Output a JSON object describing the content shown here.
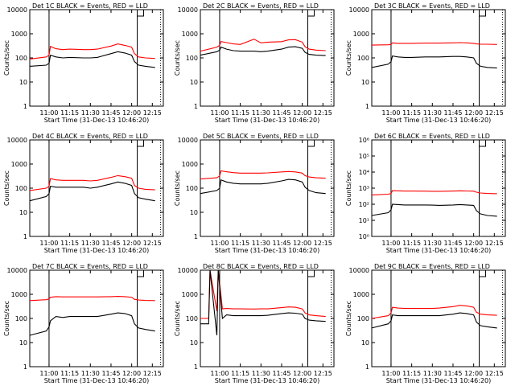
{
  "figure": {
    "xlabel": "Start Time (31-Dec-13 10:46:20)",
    "ylabel": "Counts/sec",
    "xticks": [
      "11:00",
      "11:15",
      "11:30",
      "11:45",
      "12:00",
      "12:15"
    ],
    "colors": {
      "events": "#000000",
      "lld": "#ff0000",
      "background": "#ffffff"
    }
  },
  "chart_data": [
    {
      "type": "line",
      "title": "Det 1C BLACK = Events, RED = LLD",
      "y_scale": "log",
      "ylim": [
        1,
        10000
      ],
      "yticks": [
        "1",
        "10",
        "100",
        "1000",
        "10000"
      ],
      "x": [
        "10:46",
        "10:58",
        "11:00",
        "11:01",
        "11:05",
        "11:10",
        "11:15",
        "11:25",
        "11:30",
        "11:35",
        "11:45",
        "11:50",
        "11:55",
        "12:00",
        "12:02",
        "12:05",
        "12:10",
        "12:17"
      ],
      "series": [
        {
          "name": "Events",
          "color": "#000000",
          "values": [
            45,
            50,
            60,
            130,
            110,
            100,
            105,
            100,
            100,
            105,
            150,
            180,
            160,
            130,
            70,
            50,
            45,
            40
          ]
        },
        {
          "name": "LLD",
          "color": "#ff0000",
          "values": [
            90,
            110,
            130,
            300,
            240,
            220,
            230,
            220,
            220,
            230,
            310,
            380,
            330,
            280,
            150,
            110,
            100,
            95
          ]
        }
      ]
    },
    {
      "type": "line",
      "title": "Det 2C BLACK = Events, RED = LLD",
      "y_scale": "log",
      "ylim": [
        1,
        10000
      ],
      "yticks": [
        "1",
        "10",
        "100",
        "1000",
        "10000"
      ],
      "x": [
        "10:46",
        "10:58",
        "11:00",
        "11:01",
        "11:05",
        "11:10",
        "11:15",
        "11:25",
        "11:30",
        "11:35",
        "11:45",
        "11:50",
        "11:55",
        "12:00",
        "12:02",
        "12:05",
        "12:10",
        "12:17"
      ],
      "series": [
        {
          "name": "Events",
          "color": "#000000",
          "values": [
            130,
            180,
            210,
            280,
            230,
            200,
            190,
            190,
            180,
            190,
            230,
            280,
            290,
            250,
            170,
            140,
            130,
            125
          ]
        },
        {
          "name": "LLD",
          "color": "#ff0000",
          "values": [
            190,
            280,
            330,
            480,
            430,
            380,
            360,
            600,
            420,
            450,
            470,
            560,
            570,
            450,
            290,
            230,
            210,
            200
          ]
        }
      ]
    },
    {
      "type": "line",
      "title": "Det 3C BLACK = Events, RED = LLD",
      "y_scale": "log",
      "ylim": [
        1,
        10000
      ],
      "yticks": [
        "1",
        "10",
        "100",
        "1000",
        "10000"
      ],
      "x": [
        "10:46",
        "10:58",
        "11:00",
        "11:01",
        "11:05",
        "11:10",
        "11:15",
        "11:25",
        "11:30",
        "11:35",
        "11:45",
        "11:50",
        "11:55",
        "12:00",
        "12:02",
        "12:05",
        "12:10",
        "12:17"
      ],
      "series": [
        {
          "name": "Events",
          "color": "#000000",
          "values": [
            40,
            55,
            70,
            120,
            110,
            105,
            105,
            110,
            110,
            110,
            115,
            115,
            110,
            100,
            60,
            45,
            40,
            38
          ]
        },
        {
          "name": "LLD",
          "color": "#ff0000",
          "values": [
            340,
            350,
            360,
            420,
            400,
            400,
            400,
            410,
            410,
            410,
            420,
            430,
            420,
            400,
            380,
            370,
            370,
            360
          ]
        }
      ]
    },
    {
      "type": "line",
      "title": "Det 4C BLACK = Events, RED = LLD",
      "y_scale": "log",
      "ylim": [
        1,
        10000
      ],
      "yticks": [
        "1",
        "10",
        "100",
        "1000",
        "10000"
      ],
      "x": [
        "10:46",
        "10:58",
        "11:00",
        "11:01",
        "11:05",
        "11:10",
        "11:15",
        "11:25",
        "11:30",
        "11:35",
        "11:45",
        "11:50",
        "11:55",
        "12:00",
        "12:02",
        "12:05",
        "12:10",
        "12:17"
      ],
      "series": [
        {
          "name": "Events",
          "color": "#000000",
          "values": [
            30,
            45,
            60,
            120,
            110,
            110,
            110,
            110,
            100,
            110,
            150,
            180,
            160,
            130,
            60,
            40,
            35,
            30
          ]
        },
        {
          "name": "LLD",
          "color": "#ff0000",
          "values": [
            80,
            100,
            120,
            250,
            220,
            210,
            210,
            210,
            200,
            210,
            280,
            330,
            300,
            260,
            130,
            100,
            90,
            85
          ]
        }
      ]
    },
    {
      "type": "line",
      "title": "Det 5C BLACK = Events, RED = LLD",
      "y_scale": "log",
      "ylim": [
        1,
        10000
      ],
      "yticks": [
        "1",
        "10",
        "100",
        "1000",
        "10000"
      ],
      "x": [
        "10:46",
        "10:58",
        "11:00",
        "11:01",
        "11:05",
        "11:10",
        "11:15",
        "11:25",
        "11:30",
        "11:35",
        "11:45",
        "11:50",
        "11:55",
        "12:00",
        "12:02",
        "12:05",
        "12:10",
        "12:17"
      ],
      "series": [
        {
          "name": "Events",
          "color": "#000000",
          "values": [
            60,
            80,
            100,
            220,
            180,
            160,
            150,
            150,
            150,
            160,
            200,
            230,
            220,
            180,
            110,
            80,
            65,
            60
          ]
        },
        {
          "name": "LLD",
          "color": "#ff0000",
          "values": [
            240,
            270,
            320,
            520,
            480,
            440,
            420,
            420,
            420,
            430,
            470,
            490,
            470,
            420,
            330,
            290,
            270,
            260
          ]
        }
      ]
    },
    {
      "type": "line",
      "title": "Det 6C BLACK = Events, RED = LLD",
      "y_scale": "log",
      "ylim": [
        1,
        1000000
      ],
      "yticks": [
        "10⁰",
        "10¹",
        "10²",
        "10³",
        "10⁴",
        "10⁵",
        "10⁶"
      ],
      "x": [
        "10:46",
        "10:58",
        "11:00",
        "11:01",
        "11:05",
        "11:10",
        "11:15",
        "11:25",
        "11:30",
        "11:35",
        "11:45",
        "11:50",
        "11:55",
        "12:00",
        "12:02",
        "12:05",
        "12:10",
        "12:17"
      ],
      "series": [
        {
          "name": "Events",
          "color": "#000000",
          "values": [
            20,
            30,
            45,
            100,
            95,
            90,
            90,
            90,
            88,
            85,
            90,
            95,
            90,
            85,
            40,
            25,
            20,
            18
          ]
        },
        {
          "name": "LLD",
          "color": "#ff0000",
          "values": [
            380,
            420,
            460,
            700,
            680,
            660,
            660,
            650,
            640,
            640,
            660,
            680,
            670,
            650,
            560,
            500,
            470,
            450
          ]
        }
      ]
    },
    {
      "type": "line",
      "title": "Det 7C BLACK = Events, RED = LLD",
      "y_scale": "log",
      "ylim": [
        1,
        10000
      ],
      "yticks": [
        "1",
        "10",
        "100",
        "1000",
        "10000"
      ],
      "x": [
        "10:46",
        "10:58",
        "11:00",
        "11:01",
        "11:05",
        "11:10",
        "11:15",
        "11:25",
        "11:30",
        "11:35",
        "11:45",
        "11:50",
        "11:55",
        "12:00",
        "12:02",
        "12:05",
        "12:10",
        "12:17"
      ],
      "series": [
        {
          "name": "Events",
          "color": "#000000",
          "values": [
            20,
            30,
            45,
            80,
            120,
            110,
            120,
            120,
            120,
            120,
            150,
            170,
            160,
            130,
            60,
            40,
            35,
            30
          ]
        },
        {
          "name": "LLD",
          "color": "#ff0000",
          "values": [
            550,
            600,
            650,
            750,
            800,
            780,
            780,
            780,
            780,
            780,
            800,
            820,
            800,
            760,
            620,
            580,
            560,
            550
          ]
        }
      ]
    },
    {
      "type": "line",
      "title": "Det 8C BLACK = Events, RED = LLD",
      "y_scale": "log",
      "ylim": [
        1,
        10000
      ],
      "yticks": [
        "1",
        "10",
        "100",
        "1000",
        "10000"
      ],
      "x": [
        "10:46",
        "10:52",
        "10:53",
        "10:58",
        "10:59",
        "11:02",
        "11:05",
        "11:10",
        "11:15",
        "11:25",
        "11:30",
        "11:35",
        "11:45",
        "11:50",
        "11:55",
        "12:00",
        "12:02",
        "12:05",
        "12:10",
        "12:17"
      ],
      "series": [
        {
          "name": "Events",
          "color": "#000000",
          "values": [
            60,
            60,
            10000,
            20,
            10000,
            100,
            140,
            130,
            130,
            130,
            130,
            135,
            160,
            170,
            165,
            150,
            100,
            85,
            80,
            75
          ]
        },
        {
          "name": "LLD",
          "color": "#ff0000",
          "values": [
            100,
            100,
            10000,
            200,
            10000,
            250,
            260,
            250,
            250,
            245,
            250,
            250,
            280,
            300,
            290,
            250,
            170,
            140,
            130,
            120
          ]
        }
      ]
    },
    {
      "type": "line",
      "title": "Det 9C BLACK = Events, RED = LLD",
      "y_scale": "log",
      "ylim": [
        1,
        10000
      ],
      "yticks": [
        "1",
        "10",
        "100",
        "1000",
        "10000"
      ],
      "x": [
        "10:46",
        "10:58",
        "11:00",
        "11:01",
        "11:05",
        "11:10",
        "11:15",
        "11:25",
        "11:30",
        "11:35",
        "11:45",
        "11:50",
        "11:55",
        "12:00",
        "12:02",
        "12:05",
        "12:10",
        "12:17"
      ],
      "series": [
        {
          "name": "Events",
          "color": "#000000",
          "values": [
            40,
            60,
            80,
            140,
            130,
            130,
            130,
            130,
            130,
            130,
            150,
            170,
            160,
            140,
            70,
            50,
            45,
            40
          ]
        },
        {
          "name": "LLD",
          "color": "#ff0000",
          "values": [
            100,
            130,
            170,
            290,
            270,
            260,
            260,
            260,
            260,
            270,
            310,
            350,
            330,
            290,
            180,
            150,
            140,
            135
          ]
        }
      ]
    }
  ]
}
